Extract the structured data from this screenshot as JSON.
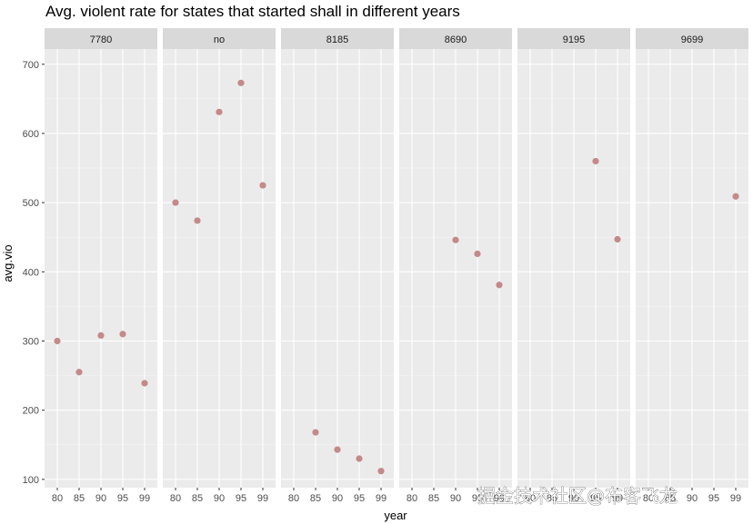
{
  "title": "Avg. violent rate for states that started shall in different years",
  "watermark": "掘金技术社区@布客飞龙",
  "chart_data": {
    "type": "scatter",
    "title": "Avg. violent rate for states that started shall in different years",
    "xlabel": "year",
    "ylabel": "avg.vio",
    "x_ticks": [
      "80",
      "85",
      "90",
      "95",
      "99"
    ],
    "y_ticks": [
      100,
      200,
      300,
      400,
      500,
      600,
      700
    ],
    "ylim": [
      88,
      722
    ],
    "grid": true,
    "point_color": "#c4898a",
    "panel_background": "#ebebeb",
    "strip_background": "#d9d9d9",
    "facets": [
      {
        "label": "7780",
        "points": [
          {
            "x": "80",
            "y": 300
          },
          {
            "x": "85",
            "y": 255
          },
          {
            "x": "90",
            "y": 308
          },
          {
            "x": "95",
            "y": 310
          },
          {
            "x": "99",
            "y": 239
          }
        ]
      },
      {
        "label": "no",
        "points": [
          {
            "x": "80",
            "y": 500
          },
          {
            "x": "85",
            "y": 474
          },
          {
            "x": "90",
            "y": 631
          },
          {
            "x": "95",
            "y": 673
          },
          {
            "x": "99",
            "y": 525
          }
        ]
      },
      {
        "label": "8185",
        "points": [
          {
            "x": "85",
            "y": 168
          },
          {
            "x": "90",
            "y": 143
          },
          {
            "x": "95",
            "y": 130
          },
          {
            "x": "99",
            "y": 112
          }
        ]
      },
      {
        "label": "8690",
        "points": [
          {
            "x": "90",
            "y": 446
          },
          {
            "x": "95",
            "y": 426
          },
          {
            "x": "99",
            "y": 381
          }
        ]
      },
      {
        "label": "9195",
        "points": [
          {
            "x": "95",
            "y": 560
          },
          {
            "x": "99",
            "y": 447
          }
        ]
      },
      {
        "label": "9699",
        "points": [
          {
            "x": "99",
            "y": 509
          }
        ]
      }
    ]
  }
}
